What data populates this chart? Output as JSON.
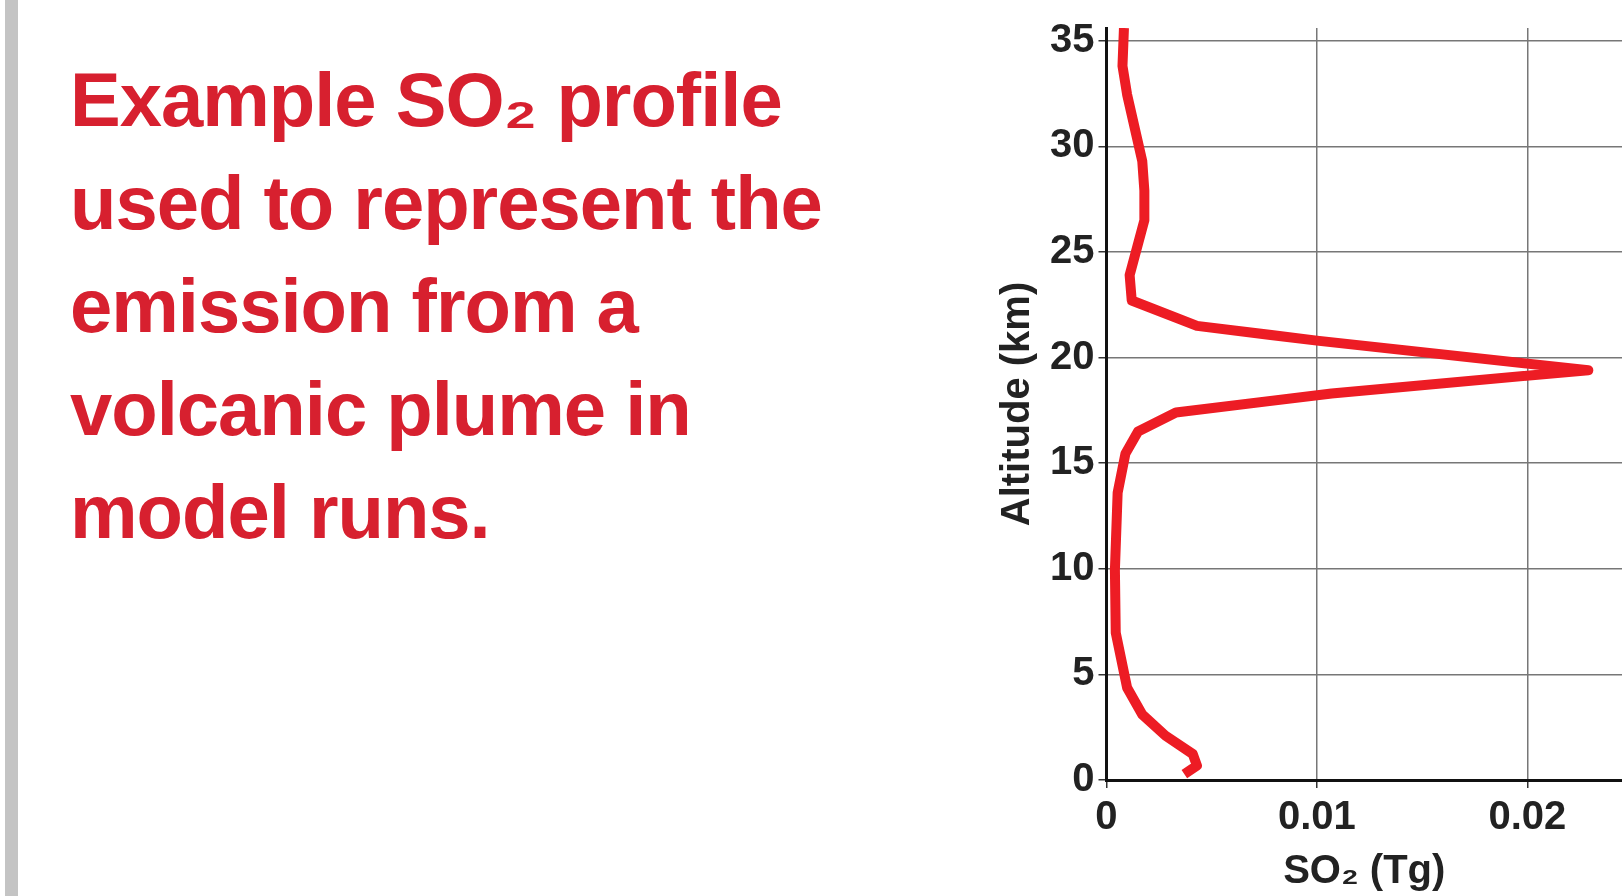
{
  "chart_data": {
    "type": "line",
    "title": "Example SO₂ profile used to represent the emission from a volcanic plume in model runs.",
    "xlabel": "SO₂ (Tg)",
    "ylabel": "Altitude (km)",
    "series": [
      {
        "color": "#ed1c24",
        "x": [
          0.00083,
          0.00076,
          0.00098,
          0.0017,
          0.0018,
          0.0018,
          0.0011,
          0.0012,
          0.0043,
          0.01,
          0.0229,
          0.0107,
          0.0033,
          0.0015,
          0.0009,
          0.00053,
          0.0004,
          0.00044,
          0.00098,
          0.0017,
          0.0028,
          0.0041,
          0.0043,
          0.0037
        ],
        "values": [
          35.6,
          33.8,
          32.45,
          29.3,
          27.9,
          26.5,
          23.9,
          22.7,
          21.5,
          20.8,
          19.4,
          18.3,
          17.4,
          16.5,
          15.45,
          13.6,
          9.95,
          6.97,
          4.37,
          3.1,
          2.1,
          1.23,
          0.68,
          0.28
        ]
      }
    ],
    "xlim": [
      0,
      0.0245
    ],
    "ylim": [
      0,
      35.6
    ],
    "xticks": [
      0,
      0.01,
      0.02
    ],
    "yticks": [
      0,
      5,
      10,
      15,
      20,
      25,
      30,
      35
    ],
    "grid": true,
    "legend": false,
    "line_style": "solid"
  }
}
